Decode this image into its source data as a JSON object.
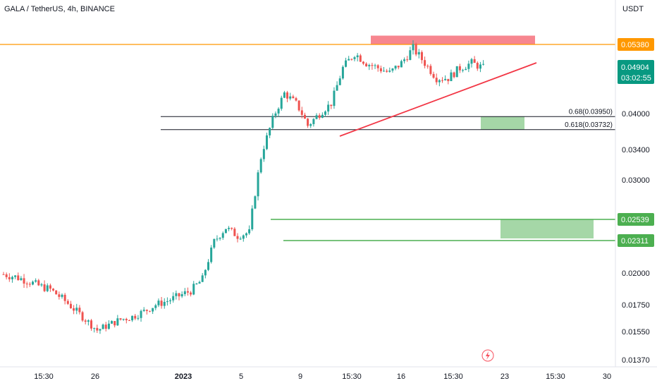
{
  "header": {
    "symbol_title": "GALA / TetherUS, 4h, BINANCE",
    "currency": "USDT"
  },
  "colors": {
    "up": "#26a69a",
    "down": "#ef5350",
    "hline_orange": "#ff9800",
    "trendline": "#f23645",
    "resistance_box": "#f23645",
    "support_box": "#4caf50",
    "fib_line": "#131722",
    "price_tag_current": "#089981",
    "price_tag_level_green": "#4caf50",
    "price_tag_level_orange": "#ff9800"
  },
  "chart_data": {
    "type": "candlestick",
    "x_tick_labels": [
      "15:30",
      "26",
      "2023",
      "5",
      "9",
      "15:30",
      "16",
      "15:30",
      "23",
      "15:30",
      "30"
    ],
    "y_tick_labels": [
      "0.05380",
      "0.04000",
      "0.03400",
      "0.03000",
      "0.02000",
      "0.01750",
      "0.01550",
      "0.01370"
    ],
    "y_tick_values": [
      0.0538,
      0.04,
      0.034,
      0.03,
      0.02,
      0.0175,
      0.0155,
      0.0137
    ],
    "horizontal_levels": [
      {
        "value": 0.0538,
        "label": "0.05380"
      },
      {
        "value": 0.02539,
        "label": "0.02539"
      },
      {
        "value": 0.02311,
        "label": "0.02311"
      }
    ],
    "fib_levels": [
      {
        "label": "0.68(0.03950)",
        "value": 0.0395
      },
      {
        "label": "0.618(0.03732)",
        "value": 0.03732
      }
    ],
    "current_price": {
      "value": 0.04904,
      "label": "0.04904",
      "countdown": "03:02:55"
    },
    "approx_closes": [
      0.0199,
      0.0197,
      0.0194,
      0.019,
      0.0187,
      0.018,
      0.0172,
      0.0164,
      0.0156,
      0.016,
      0.0164,
      0.0166,
      0.017,
      0.0175,
      0.0178,
      0.0182,
      0.0186,
      0.0195,
      0.023,
      0.0245,
      0.0236,
      0.024,
      0.033,
      0.039,
      0.044,
      0.042,
      0.038,
      0.04,
      0.042,
      0.049,
      0.052,
      0.05,
      0.049,
      0.048,
      0.05,
      0.053,
      0.05,
      0.047,
      0.047,
      0.049,
      0.05,
      0.049
    ]
  },
  "watermark_icon": "lightning-icon"
}
